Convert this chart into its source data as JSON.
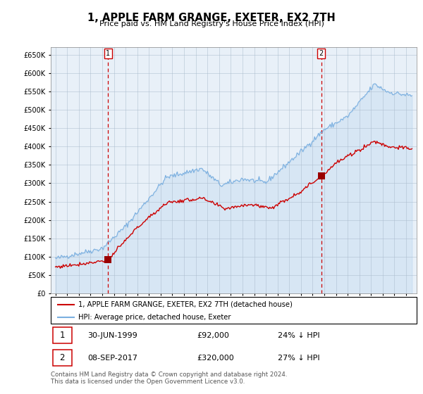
{
  "title": "1, APPLE FARM GRANGE, EXETER, EX2 7TH",
  "subtitle": "Price paid vs. HM Land Registry's House Price Index (HPI)",
  "legend_property": "1, APPLE FARM GRANGE, EXETER, EX2 7TH (detached house)",
  "legend_hpi": "HPI: Average price, detached house, Exeter",
  "sale1_date": "30-JUN-1999",
  "sale1_price": 92000,
  "sale1_label": "24% ↓ HPI",
  "sale2_date": "08-SEP-2017",
  "sale2_price": 320000,
  "sale2_label": "27% ↓ HPI",
  "footnote": "Contains HM Land Registry data © Crown copyright and database right 2024.\nThis data is licensed under the Open Government Licence v3.0.",
  "property_color": "#cc0000",
  "hpi_color": "#7aafe0",
  "hpi_fill_color": "#ddeeff",
  "sale_marker_color": "#990000",
  "vline_color": "#cc0000",
  "ylim_min": 0,
  "ylim_max": 670000,
  "yticks": [
    0,
    50000,
    100000,
    150000,
    200000,
    250000,
    300000,
    350000,
    400000,
    450000,
    500000,
    550000,
    600000,
    650000
  ],
  "background_color": "#e8f0f8",
  "grid_color": "#aabbcc",
  "sale1_year": 1999.5,
  "sale2_year": 2017.75
}
